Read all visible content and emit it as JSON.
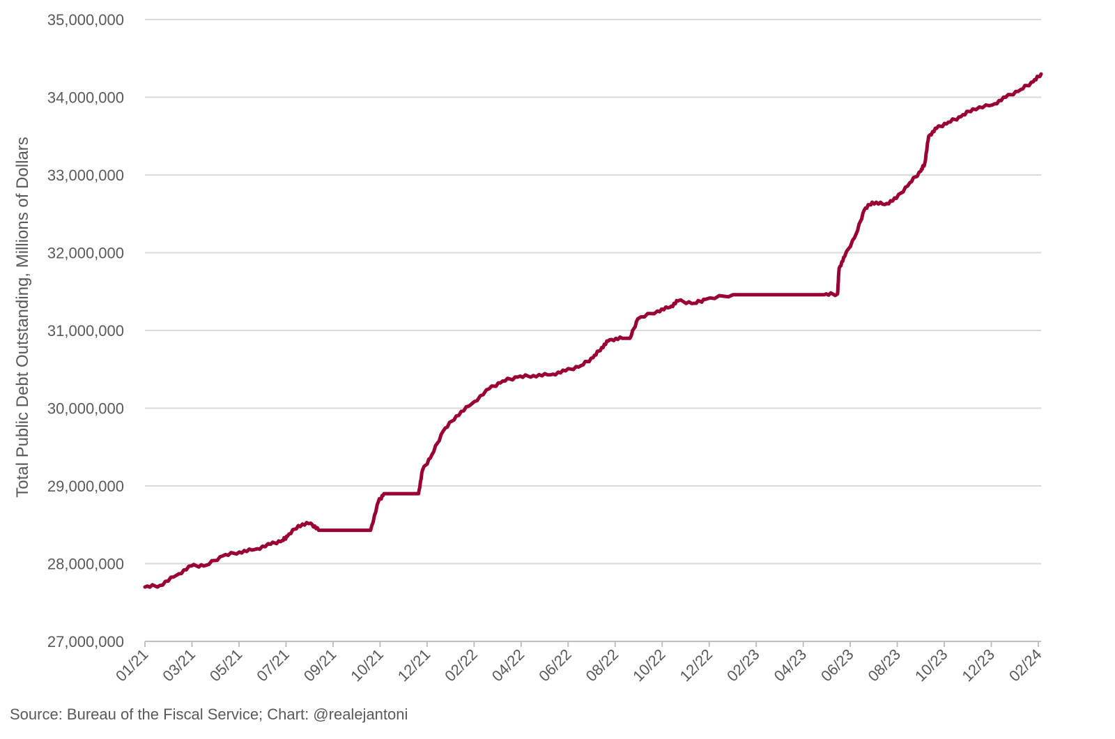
{
  "chart_data": {
    "type": "line",
    "ylabel": "Total Public Debt Outstanding, Millions of Dollars",
    "ylim": [
      27000000,
      35000000
    ],
    "yticks": [
      27000000,
      28000000,
      29000000,
      30000000,
      31000000,
      32000000,
      33000000,
      34000000,
      35000000
    ],
    "ytick_labels": [
      "27,000,000",
      "28,000,000",
      "29,000,000",
      "30,000,000",
      "31,000,000",
      "32,000,000",
      "33,000,000",
      "34,000,000",
      "35,000,000"
    ],
    "xlim": [
      "2021-01-01",
      "2024-02-15"
    ],
    "xtick_labels": [
      "01/21",
      "03/21",
      "05/21",
      "07/21",
      "09/21",
      "10/21",
      "12/21",
      "02/22",
      "04/22",
      "06/22",
      "08/22",
      "10/22",
      "12/22",
      "02/23",
      "04/23",
      "06/23",
      "08/23",
      "10/23",
      "12/23",
      "02/24"
    ],
    "xtick_dates": [
      "2021-01-01",
      "2021-03-01",
      "2021-05-01",
      "2021-07-01",
      "2021-09-01",
      "2021-10-31",
      "2021-12-31",
      "2022-03-02",
      "2022-05-01",
      "2022-07-01",
      "2022-08-31",
      "2022-10-30",
      "2022-12-30",
      "2023-02-28",
      "2023-04-29",
      "2023-06-29",
      "2023-08-28",
      "2023-10-28",
      "2023-12-27",
      "2024-02-25"
    ],
    "grid": true,
    "series": [
      {
        "color": "#990033",
        "x": [
          "2021-01-01",
          "2021-01-20",
          "2021-02-10",
          "2021-03-01",
          "2021-03-20",
          "2021-04-10",
          "2021-05-01",
          "2021-05-20",
          "2021-06-10",
          "2021-06-25",
          "2021-07-01",
          "2021-07-15",
          "2021-07-31",
          "2021-08-10",
          "2021-09-01",
          "2021-09-20",
          "2021-10-10",
          "2021-10-15",
          "2021-10-25",
          "2021-11-01",
          "2021-11-15",
          "2021-12-01",
          "2021-12-15",
          "2021-12-20",
          "2022-01-01",
          "2022-01-15",
          "2022-02-01",
          "2022-02-20",
          "2022-03-15",
          "2022-04-01",
          "2022-04-20",
          "2022-05-10",
          "2022-06-01",
          "2022-06-20",
          "2022-07-10",
          "2022-07-25",
          "2022-08-05",
          "2022-08-15",
          "2022-08-31",
          "2022-09-10",
          "2022-09-20",
          "2022-10-15",
          "2022-10-31",
          "2022-11-10",
          "2022-12-01",
          "2022-12-15",
          "2023-01-19",
          "2023-02-15",
          "2023-03-15",
          "2023-04-15",
          "2023-05-15",
          "2023-06-01",
          "2023-06-03",
          "2023-06-10",
          "2023-06-25",
          "2023-07-05",
          "2023-07-15",
          "2023-07-31",
          "2023-08-15",
          "2023-09-01",
          "2023-09-15",
          "2023-09-20",
          "2023-09-25",
          "2023-10-05",
          "2023-10-20",
          "2023-11-05",
          "2023-11-20",
          "2023-12-15",
          "2024-01-01",
          "2024-01-20",
          "2024-02-05",
          "2024-02-15"
        ],
        "values": [
          27700000,
          27720000,
          27850000,
          27970000,
          27980000,
          28100000,
          28150000,
          28180000,
          28250000,
          28300000,
          28350000,
          28490000,
          28520000,
          28430000,
          28430000,
          28430000,
          28430000,
          28430000,
          28800000,
          28900000,
          28900000,
          28900000,
          28900000,
          29200000,
          29400000,
          29700000,
          29900000,
          30050000,
          30250000,
          30350000,
          30400000,
          30420000,
          30430000,
          30480000,
          30550000,
          30650000,
          30780000,
          30880000,
          30900000,
          30900000,
          31150000,
          31250000,
          31300000,
          31380000,
          31350000,
          31400000,
          31460000,
          31460000,
          31460000,
          31460000,
          31460000,
          31470000,
          31800000,
          31950000,
          32250000,
          32550000,
          32650000,
          32620000,
          32700000,
          32900000,
          33050000,
          33150000,
          33500000,
          33600000,
          33680000,
          33750000,
          33850000,
          33900000,
          34000000,
          34100000,
          34200000,
          34300000
        ]
      }
    ]
  },
  "footer": {
    "source": "Source: Bureau of the Fiscal Service; Chart: @realejantoni"
  }
}
